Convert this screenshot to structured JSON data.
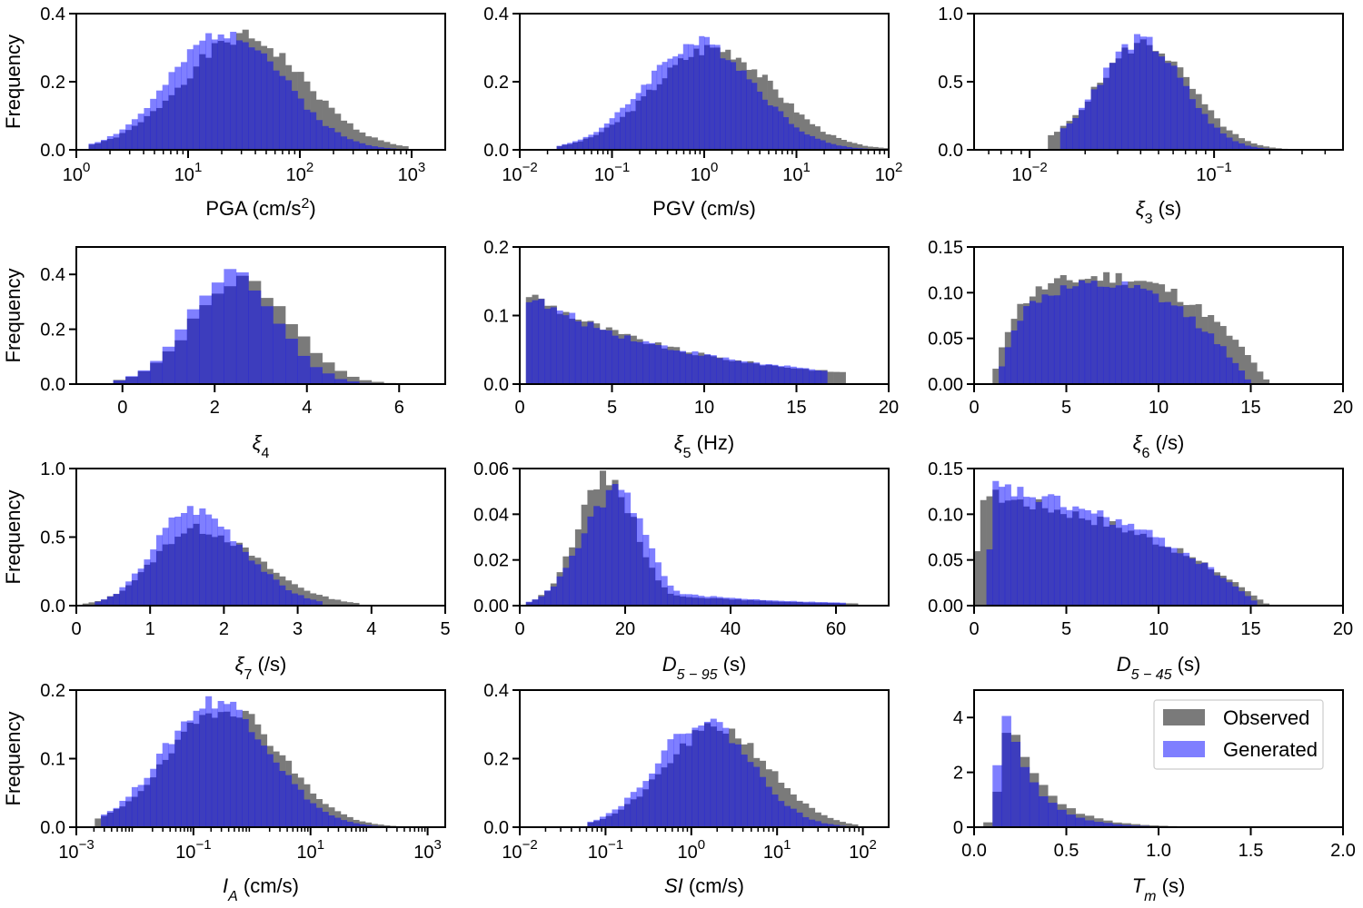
{
  "figure": {
    "observed_color": "#7a7a7a",
    "generated_color": "#0000ff",
    "overlap_color": "#3d3dc4"
  },
  "legend": {
    "observed_label": "Observed",
    "generated_label": "Generated"
  },
  "chart_data": [
    {
      "type": "histogram",
      "id": "pga",
      "scale": "log",
      "xlim": [
        1,
        2000
      ],
      "ylim": [
        0,
        0.4
      ],
      "yticks": [
        0.0,
        0.2,
        0.4
      ],
      "ytick_labels": [
        "0.0",
        "0.2",
        "0.4"
      ],
      "xticks": [
        1,
        10,
        100,
        1000
      ],
      "xtick_labels": [
        [
          "10",
          "0"
        ],
        [
          "10",
          "1"
        ],
        [
          "10",
          "2"
        ],
        [
          "10",
          "3"
        ]
      ],
      "ylabel": "Frequency",
      "xlabel": [
        {
          "t": "PGA (cm/s"
        },
        {
          "t": "2",
          "sup": true
        },
        {
          "t": ")"
        }
      ],
      "observed": {
        "center": 1.5,
        "sigma": 0.55,
        "peak": 0.33,
        "lo": 0.1,
        "hi": 2.95,
        "seed": 1
      },
      "generated": {
        "center": 1.35,
        "sigma": 0.5,
        "peak": 0.35,
        "lo": 0.1,
        "hi": 2.85,
        "seed": 2
      },
      "bins": 60
    },
    {
      "type": "histogram",
      "id": "pgv",
      "scale": "log",
      "xlim": [
        0.01,
        100
      ],
      "ylim": [
        0,
        0.4
      ],
      "yticks": [
        0.0,
        0.2,
        0.4
      ],
      "ytick_labels": [
        "0.0",
        "0.2",
        "0.4"
      ],
      "xticks": [
        0.01,
        0.1,
        1,
        10,
        100
      ],
      "xtick_labels": [
        [
          "10",
          "−2"
        ],
        [
          "10",
          "−1"
        ],
        [
          "10",
          "0"
        ],
        [
          "10",
          "1"
        ],
        [
          "10",
          "2"
        ]
      ],
      "xlabel": [
        {
          "t": "PGV (cm/s)"
        }
      ],
      "observed": {
        "center": 0.1,
        "sigma": 0.65,
        "peak": 0.3,
        "lo": -1.6,
        "hi": 2.0,
        "seed": 3
      },
      "generated": {
        "center": -0.05,
        "sigma": 0.6,
        "peak": 0.315,
        "lo": -1.6,
        "hi": 1.9,
        "seed": 4
      },
      "bins": 70
    },
    {
      "type": "histogram",
      "id": "xi3",
      "scale": "log",
      "xlim": [
        0.005,
        0.5
      ],
      "ylim": [
        0,
        1.0
      ],
      "yticks": [
        0.0,
        0.5,
        1.0
      ],
      "ytick_labels": [
        "0.0",
        "0.5",
        "1.0"
      ],
      "xticks": [
        0.01,
        0.1
      ],
      "xtick_labels": [
        [
          "10",
          "−2"
        ],
        [
          "10",
          "−1"
        ]
      ],
      "xlabel": [
        {
          "t": "ξ",
          "it": true
        },
        {
          "t": "3",
          "sub": true
        },
        {
          "t": " (s)"
        }
      ],
      "observed": {
        "center": -1.38,
        "sigma": 0.25,
        "peak": 0.78,
        "lo": -1.9,
        "hi": -0.4,
        "seed": 5
      },
      "generated": {
        "center": -1.4,
        "sigma": 0.23,
        "peak": 0.8,
        "lo": -1.85,
        "hi": -0.45,
        "seed": 6
      },
      "bins": 60
    },
    {
      "type": "histogram",
      "id": "xi4",
      "scale": "linear",
      "xlim": [
        -1,
        7
      ],
      "ylim": [
        0,
        0.5
      ],
      "yticks": [
        0.0,
        0.2,
        0.4
      ],
      "ytick_labels": [
        "0.0",
        "0.2",
        "0.4"
      ],
      "xticks": [
        0,
        2,
        4,
        6
      ],
      "xtick_labels": [
        "0",
        "2",
        "4",
        "6"
      ],
      "ylabel": "Frequency",
      "xlabel": [
        {
          "t": "ξ",
          "it": true
        },
        {
          "t": "4",
          "sub": true
        }
      ],
      "observed": {
        "center": 2.6,
        "sigma": 1.05,
        "peak": 0.38,
        "lo": -0.3,
        "hi": 6.5,
        "seed": 7
      },
      "generated": {
        "center": 2.4,
        "sigma": 0.95,
        "peak": 0.4,
        "lo": -0.3,
        "hi": 6.0,
        "seed": 8
      },
      "bins": 30
    },
    {
      "type": "histogram",
      "id": "xi5",
      "scale": "linear",
      "xlim": [
        0,
        20
      ],
      "ylim": [
        0,
        0.2
      ],
      "yticks": [
        0.0,
        0.1,
        0.2
      ],
      "ytick_labels": [
        "0.0",
        "0.1",
        "0.2"
      ],
      "xticks": [
        0,
        5,
        10,
        15,
        20
      ],
      "xtick_labels": [
        "0",
        "5",
        "10",
        "15",
        "20"
      ],
      "xlabel": [
        {
          "t": "ξ",
          "it": true
        },
        {
          "t": "5",
          "sub": true
        },
        {
          "t": " (Hz)"
        }
      ],
      "observed": {
        "shape": "decay",
        "start": 0.3,
        "end": 17.5,
        "peak": 0.135,
        "decay": 0.12,
        "seed": 9
      },
      "generated": {
        "shape": "decay",
        "start": 0.3,
        "end": 16.5,
        "peak": 0.13,
        "decay": 0.115,
        "seed": 10
      },
      "bins": 60
    },
    {
      "type": "histogram",
      "id": "xi6",
      "scale": "linear",
      "xlim": [
        0,
        20
      ],
      "ylim": [
        0,
        0.15
      ],
      "yticks": [
        0.0,
        0.05,
        0.1,
        0.15
      ],
      "ytick_labels": [
        "0.00",
        "0.05",
        "0.10",
        "0.15"
      ],
      "xticks": [
        0,
        5,
        10,
        15,
        20
      ],
      "xtick_labels": [
        "0",
        "5",
        "10",
        "15",
        "20"
      ],
      "xlabel": [
        {
          "t": "ξ",
          "it": true
        },
        {
          "t": "6",
          "sub": true
        },
        {
          "t": " (/s)"
        }
      ],
      "observed": {
        "shape": "plateau",
        "start": 1.0,
        "end": 16.0,
        "peak": 0.12,
        "seed": 11
      },
      "generated": {
        "shape": "plateau",
        "start": 1.3,
        "end": 15.0,
        "peak": 0.11,
        "seed": 12
      },
      "bins": 60
    },
    {
      "type": "histogram",
      "id": "xi7",
      "scale": "linear",
      "xlim": [
        0,
        5
      ],
      "ylim": [
        0,
        1.0
      ],
      "yticks": [
        0.0,
        0.5,
        1.0
      ],
      "ytick_labels": [
        "0.0",
        "0.5",
        "1.0"
      ],
      "xticks": [
        0,
        1,
        2,
        3,
        4,
        5
      ],
      "xtick_labels": [
        "0",
        "1",
        "2",
        "3",
        "4",
        "5"
      ],
      "ylabel": "Frequency",
      "xlabel": [
        {
          "t": "ξ",
          "it": true
        },
        {
          "t": "7",
          "sub": true
        },
        {
          "t": " (/s)"
        }
      ],
      "observed": {
        "shape": "skew",
        "mode": 1.6,
        "left": 0.55,
        "right": 0.85,
        "peak": 0.56,
        "lo": 0.1,
        "hi": 3.8,
        "seed": 13
      },
      "generated": {
        "shape": "skew",
        "mode": 1.55,
        "left": 0.5,
        "right": 0.7,
        "peak": 0.7,
        "lo": 0.25,
        "hi": 3.3,
        "seed": 14
      },
      "bins": 60
    },
    {
      "type": "histogram",
      "id": "d595",
      "scale": "linear",
      "xlim": [
        0,
        70
      ],
      "ylim": [
        0,
        0.06
      ],
      "yticks": [
        0.0,
        0.02,
        0.04,
        0.06
      ],
      "ytick_labels": [
        "0.00",
        "0.02",
        "0.04",
        "0.06"
      ],
      "xticks": [
        0,
        20,
        40,
        60
      ],
      "xtick_labels": [
        "0",
        "20",
        "40",
        "60"
      ],
      "xlabel": [
        {
          "t": "D",
          "it": true
        },
        {
          "t": "5 − 95",
          "sub": true,
          "it": true
        },
        {
          "t": " (s)"
        }
      ],
      "observed": {
        "shape": "duration",
        "mode": 16.5,
        "left": 5.5,
        "peak": 0.056,
        "tail": 0.008,
        "lo": 1.5,
        "hi": 64,
        "seed": 15
      },
      "generated": {
        "shape": "duration",
        "mode": 18.5,
        "left": 6.5,
        "peak": 0.05,
        "tail": 0.009,
        "lo": 1.5,
        "hi": 62,
        "seed": 16
      },
      "bins": 60
    },
    {
      "type": "histogram",
      "id": "d545",
      "scale": "linear",
      "xlim": [
        0,
        20
      ],
      "ylim": [
        0,
        0.15
      ],
      "yticks": [
        0.0,
        0.05,
        0.1,
        0.15
      ],
      "ytick_labels": [
        "0.00",
        "0.05",
        "0.10",
        "0.15"
      ],
      "xticks": [
        0,
        5,
        10,
        15,
        20
      ],
      "xtick_labels": [
        "0",
        "5",
        "10",
        "15",
        "20"
      ],
      "xlabel": [
        {
          "t": "D",
          "it": true
        },
        {
          "t": "5 − 45",
          "sub": true,
          "it": true
        },
        {
          "t": " (s)"
        }
      ],
      "observed": {
        "shape": "decay2",
        "start": 0.0,
        "end": 16.0,
        "peak": 0.125,
        "seed": 17
      },
      "generated": {
        "shape": "decay2",
        "start": 0.7,
        "end": 15.5,
        "peak": 0.132,
        "seed": 18
      },
      "bins": 60
    },
    {
      "type": "histogram",
      "id": "ia",
      "scale": "log",
      "xlim": [
        0.001,
        2000
      ],
      "ylim": [
        0,
        0.2
      ],
      "yticks": [
        0.0,
        0.1,
        0.2
      ],
      "ytick_labels": [
        "0.0",
        "0.1",
        "0.2"
      ],
      "xticks": [
        0.001,
        0.1,
        10,
        1000
      ],
      "xtick_labels": [
        [
          "10",
          "−3"
        ],
        [
          "10",
          "−1"
        ],
        [
          "10",
          "1"
        ],
        [
          "10",
          "3"
        ]
      ],
      "ylabel": "Frequency",
      "xlabel": [
        {
          "t": "I",
          "it": true
        },
        {
          "t": "A",
          "sub": true,
          "it": true
        },
        {
          "t": " (cm/s)"
        }
      ],
      "observed": {
        "center": -0.45,
        "sigma": 0.95,
        "peak": 0.175,
        "lo": -2.7,
        "hi": 2.9,
        "seed": 19
      },
      "generated": {
        "center": -0.6,
        "sigma": 0.9,
        "peak": 0.185,
        "lo": -2.6,
        "hi": 2.7,
        "seed": 20
      },
      "bins": 60
    },
    {
      "type": "histogram",
      "id": "si",
      "scale": "log",
      "xlim": [
        0.01,
        200
      ],
      "ylim": [
        0,
        0.4
      ],
      "yticks": [
        0.0,
        0.2,
        0.4
      ],
      "ytick_labels": [
        "0.0",
        "0.2",
        "0.4"
      ],
      "xticks": [
        0.01,
        0.1,
        1,
        10,
        100
      ],
      "xtick_labels": [
        [
          "10",
          "−2"
        ],
        [
          "10",
          "−1"
        ],
        [
          "10",
          "0"
        ],
        [
          "10",
          "1"
        ],
        [
          "10",
          "2"
        ]
      ],
      "xlabel": [
        {
          "t": "SI",
          "it": true
        },
        {
          "t": " (cm/s)"
        }
      ],
      "observed": {
        "center": 0.3,
        "sigma": 0.6,
        "peak": 0.29,
        "lo": -1.2,
        "hi": 1.95,
        "seed": 21
      },
      "generated": {
        "center": 0.15,
        "sigma": 0.55,
        "peak": 0.31,
        "lo": -1.2,
        "hi": 1.9,
        "seed": 22
      },
      "bins": 60
    },
    {
      "type": "histogram",
      "id": "tm",
      "scale": "linear",
      "xlim": [
        0,
        2
      ],
      "ylim": [
        0,
        5
      ],
      "yticks": [
        0,
        2,
        4
      ],
      "ytick_labels": [
        "0",
        "2",
        "4"
      ],
      "xticks": [
        0,
        0.5,
        1,
        1.5,
        2
      ],
      "xtick_labels": [
        "0.0",
        "0.5",
        "1.0",
        "1.5",
        "2.0"
      ],
      "xlabel": [
        {
          "t": "T",
          "it": true
        },
        {
          "t": "m",
          "sub": true,
          "it": true
        },
        {
          "t": " (s)"
        }
      ],
      "observed": {
        "shape": "lognorm",
        "mode": 0.2,
        "sl": 0.05,
        "sr": 0.17,
        "peak": 3.8,
        "lo": 0.07,
        "hi": 1.1,
        "seed": 23
      },
      "generated": {
        "shape": "lognorm",
        "mode": 0.17,
        "sl": 0.04,
        "sr": 0.15,
        "peak": 4.1,
        "lo": 0.08,
        "hi": 1.0,
        "seed": 24
      },
      "bins": 40,
      "legend": true
    }
  ]
}
